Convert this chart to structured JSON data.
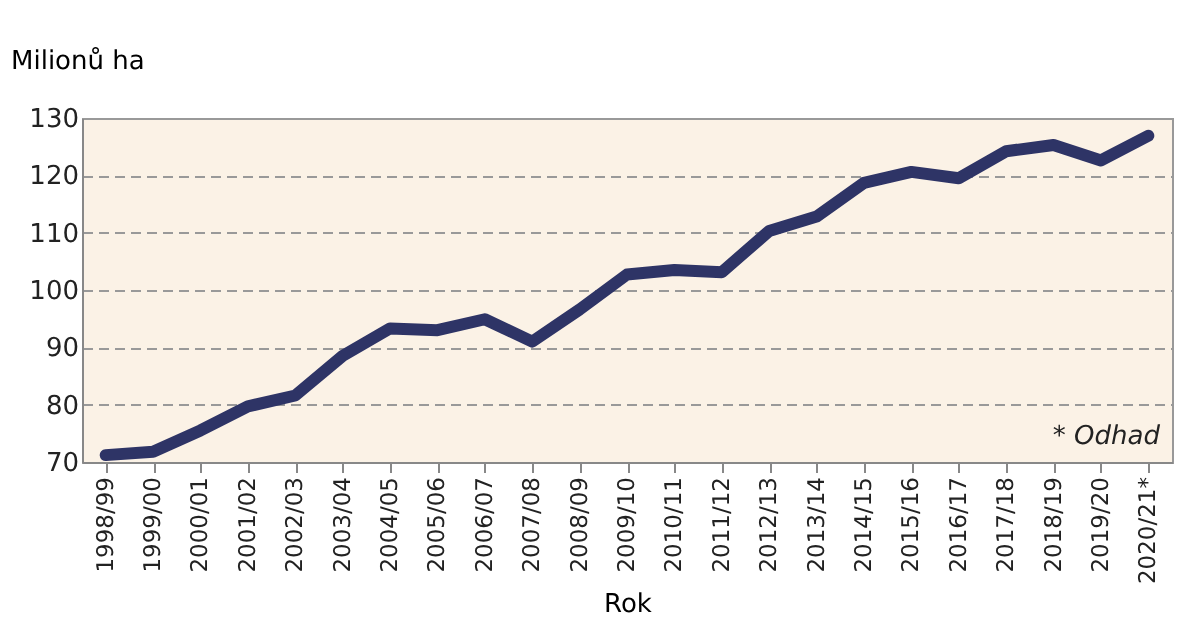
{
  "chart_data": {
    "type": "line",
    "ylabel": "Milionů ha",
    "xlabel": "Rok",
    "categories": [
      "1998/99",
      "1999/00",
      "2000/01",
      "2001/02",
      "2002/03",
      "2003/04",
      "2004/05",
      "2005/06",
      "2006/07",
      "2007/08",
      "2008/09",
      "2009/10",
      "2010/11",
      "2011/12",
      "2012/13",
      "2013/14",
      "2014/15",
      "2015/16",
      "2016/17",
      "2017/18",
      "2018/19",
      "2019/20",
      "2020/21*"
    ],
    "series": [
      {
        "color": "#2e3466",
        "values": [
          71.2,
          71.8,
          75.5,
          79.7,
          81.6,
          88.5,
          93.3,
          93.0,
          94.9,
          91.0,
          96.6,
          102.7,
          103.5,
          103.1,
          110.3,
          112.8,
          118.7,
          120.6,
          119.5,
          124.2,
          125.3,
          122.6,
          126.9
        ]
      }
    ],
    "ylim": [
      70,
      130
    ],
    "yticks": [
      70,
      80,
      90,
      100,
      110,
      120,
      130
    ],
    "grid": "y",
    "legend": false,
    "marker": "none",
    "line_style": "solid",
    "annotations": [
      "* Odhad"
    ]
  }
}
